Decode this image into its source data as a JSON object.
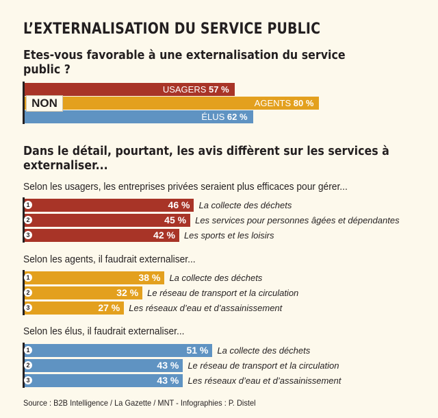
{
  "title": "L’EXTERNALISATION DU SERVICE PUBLIC",
  "question": "Etes-vous favorable à une externalisation du service public ?",
  "colors": {
    "red": "#a83427",
    "yellow": "#e3a01e",
    "blue": "#5f93c2"
  },
  "chart_data": [
    {
      "type": "bar",
      "title": "Etes-vous favorable à une externalisation du service public ?",
      "answer": "NON",
      "categories": [
        "USAGERS",
        "AGENTS",
        "ÉLUS"
      ],
      "values": [
        57,
        80,
        62
      ],
      "value_labels": [
        "57 %",
        "80 %",
        "62 %"
      ],
      "unit": "%"
    },
    {
      "type": "bar",
      "title": "Selon les usagers, les entreprises privées seraient plus efficaces pour gérer...",
      "ranks": [
        "1",
        "2",
        "3"
      ],
      "categories": [
        "La collecte des déchets",
        "Les services pour personnes âgées et dépendantes",
        "Les sports et les loisirs"
      ],
      "values": [
        46,
        45,
        42
      ],
      "value_labels": [
        "46 %",
        "45 %",
        "42 %"
      ],
      "unit": "%"
    },
    {
      "type": "bar",
      "title": "Selon les agents, il faudrait externaliser...",
      "ranks": [
        "1",
        "2",
        "3"
      ],
      "categories": [
        "La collecte des déchets",
        "Le réseau de transport et la circulation",
        "Les réseaux d’eau et d’assainissement"
      ],
      "values": [
        38,
        32,
        27
      ],
      "value_labels": [
        "38 %",
        "32 %",
        "27 %"
      ],
      "unit": "%"
    },
    {
      "type": "bar",
      "title": "Selon les élus, il faudrait externaliser...",
      "ranks": [
        "1",
        "2",
        "3"
      ],
      "categories": [
        "La collecte des déchets",
        "Le réseau de transport et la circulation",
        "Les réseaux d’eau et d’assainissement"
      ],
      "values": [
        51,
        43,
        43
      ],
      "value_labels": [
        "51 %",
        "43 %",
        "43 %"
      ],
      "unit": "%"
    }
  ],
  "detail_title": "Dans le détail, pourtant, les avis diffèrent sur les services à externaliser...",
  "source": "Source : B2B Intelligence / La Gazette / MNT - Infographies : P. Distel"
}
